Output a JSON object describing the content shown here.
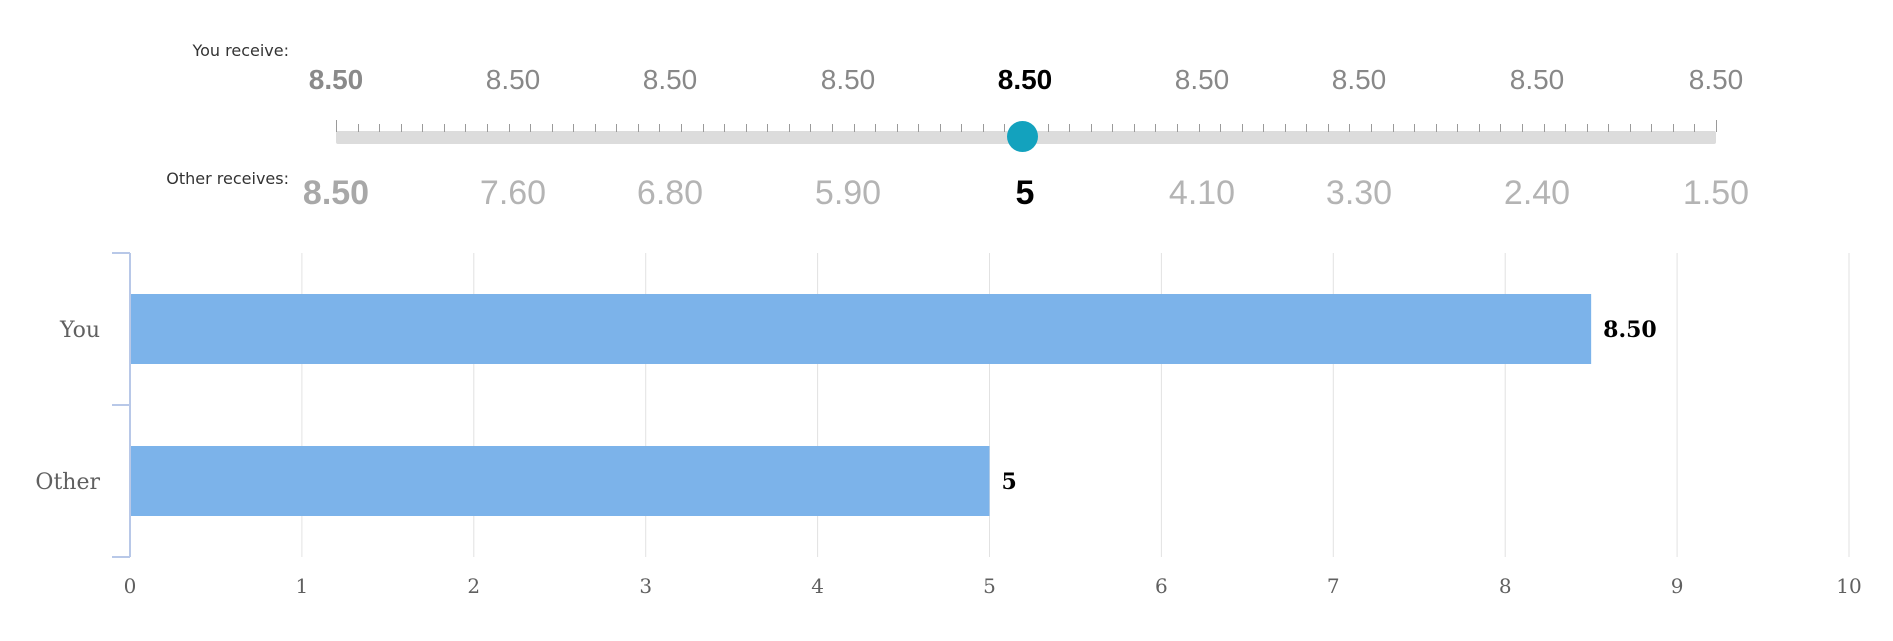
{
  "slider": {
    "you_label": "You receive:",
    "other_label": "Other receives:",
    "you_values": [
      "8.50",
      "8.50",
      "8.50",
      "8.50",
      "8.50",
      "8.50",
      "8.50",
      "8.50",
      "8.50"
    ],
    "other_values": [
      "8.50",
      "7.60",
      "6.80",
      "5.90",
      "5",
      "4.10",
      "3.30",
      "2.40",
      "1.50"
    ],
    "selected_index": 4,
    "handle_color": "#13a2be"
  },
  "chart_data": {
    "type": "bar",
    "orientation": "horizontal",
    "categories": [
      "You",
      "Other"
    ],
    "values": [
      8.5,
      5
    ],
    "data_labels": [
      "8.50",
      "5"
    ],
    "xlim": [
      0,
      10
    ],
    "x_ticks": [
      "0",
      "1",
      "2",
      "3",
      "4",
      "5",
      "6",
      "7",
      "8",
      "9",
      "10"
    ],
    "grid": true,
    "bar_color": "#7cb3ea"
  }
}
